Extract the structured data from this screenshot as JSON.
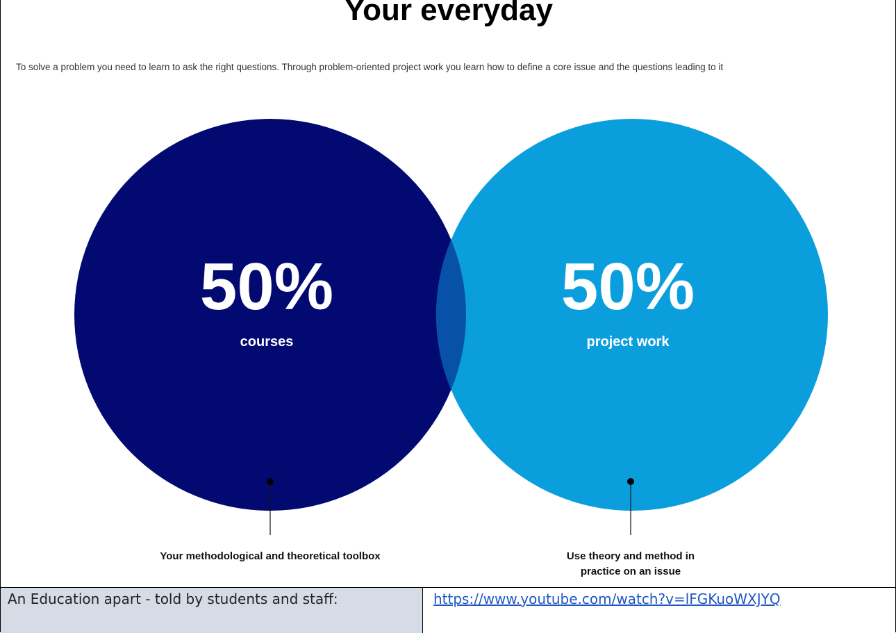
{
  "header": {
    "title": "Your everyday",
    "intro": "To solve a problem you need to learn to ask the right questions. Through problem-oriented project work you learn how to define a core issue and the questions leading to it"
  },
  "diagram": {
    "left": {
      "percent": "50%",
      "label": "courses",
      "caption": "Your methodological and theoretical toolbox",
      "color": "#020a72"
    },
    "right": {
      "percent": "50%",
      "label": "project work",
      "caption_line1": "Use theory and method in",
      "caption_line2": "practice on an issue",
      "color": "#0a9fdc"
    },
    "overlap_color": "#0752a8"
  },
  "footer_table": {
    "label": "An Education apart - told by students and staff:",
    "link_text": "https://www.youtube.com/watch?v=lFGKuoWXJYQ"
  }
}
